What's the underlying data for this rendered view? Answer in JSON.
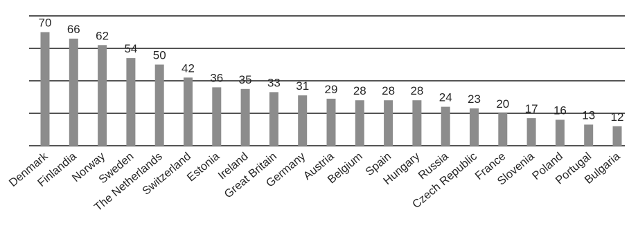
{
  "chart_data": {
    "type": "bar",
    "title": "",
    "xlabel": "",
    "ylabel": "",
    "ylim": [
      0,
      80
    ],
    "grid": true,
    "gridlines_at": [
      20,
      40,
      60,
      80
    ],
    "legend": "none",
    "bar_color": "#8c8c8c",
    "categories": [
      "Denmark",
      "Finlandia",
      "Norway",
      "Sweden",
      "The Netherlands",
      "Switzerland",
      "Estonia",
      "Ireland",
      "Great Britain",
      "Germany",
      "Austria",
      "Belgium",
      "Spain",
      "Hungary",
      "Russia",
      "Czech Republic",
      "France",
      "Slovenia",
      "Poland",
      "Portugal",
      "Bulgaria"
    ],
    "values": [
      70,
      66,
      62,
      54,
      50,
      42,
      36,
      35,
      33,
      31,
      29,
      28,
      28,
      28,
      24,
      23,
      20,
      17,
      16,
      13,
      12
    ],
    "data_labels": [
      "70",
      "66",
      "62",
      "54",
      "50",
      "42",
      "36",
      "35",
      "33",
      "31",
      "29",
      "28",
      "28",
      "28",
      "24",
      "23",
      "20",
      "17",
      "16",
      "13",
      "12"
    ]
  }
}
